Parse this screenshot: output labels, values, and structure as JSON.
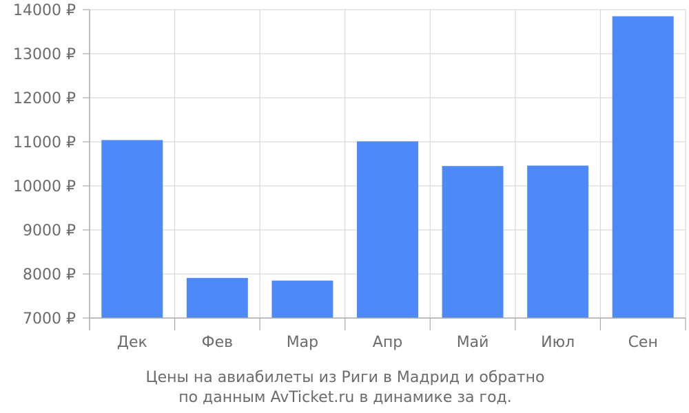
{
  "chart_data": {
    "type": "bar",
    "categories": [
      "Дек",
      "Фев",
      "Мар",
      "Апр",
      "Май",
      "Июл",
      "Сен"
    ],
    "values": [
      11040,
      7910,
      7850,
      11010,
      10450,
      10460,
      13850
    ],
    "ylim": [
      7000,
      14000
    ],
    "y_ticks": [
      7000,
      8000,
      9000,
      10000,
      11000,
      12000,
      13000,
      14000
    ],
    "y_tick_suffix": " ₽",
    "grid": true,
    "bar_color": "#4d8af8",
    "grid_color": "#d9d9d9",
    "axis_color": "#aaaaaa",
    "text_color": "#6b6b6b",
    "caption": [
      "Цены на авиабилеты из Риги в Мадрид и обратно",
      "по данным AvTicket.ru в динамике за год."
    ]
  }
}
